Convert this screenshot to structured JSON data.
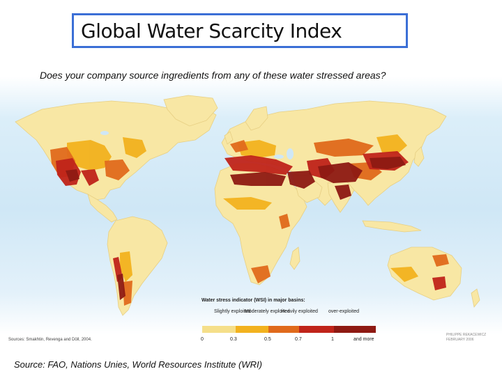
{
  "title": "Global Water Scarcity Index",
  "subtitle": "Does your company source ingredients from any of these water stressed areas?",
  "legend": {
    "title": "Water stress indicator (WSI) in major basins:",
    "categories": [
      {
        "label": "Slightly exploited",
        "color": "#f5df8a"
      },
      {
        "label": "Moderately exploited",
        "color": "#f2b21f"
      },
      {
        "label": "Heavily exploited",
        "color": "#e06a1c"
      },
      {
        "label": "over-exploited",
        "color": "#c0241a"
      },
      {
        "label": "",
        "color": "#8e1a13"
      }
    ],
    "ticks": [
      "0",
      "0.3",
      "0.5",
      "0.7",
      "1",
      "and more"
    ]
  },
  "map_source": "Sources: Smakhtin, Revenga and Döll, 2004.",
  "map_credit": "PHILIPPE REKACEWICZ FEBRUARY 2006",
  "source": "Source: FAO, Nations Unies, World Resources Institute (WRI)",
  "colors": {
    "title_border": "#3b6fd6",
    "land": "#f8e7a4",
    "slight": "#f5df8a",
    "moderate": "#f2b21f",
    "heavy": "#e06a1c",
    "over": "#c0241a",
    "extreme": "#8e1a13"
  }
}
